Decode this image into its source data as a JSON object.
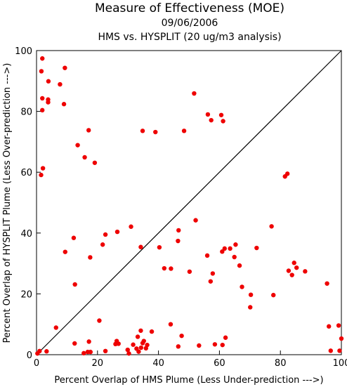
{
  "chart_data": {
    "type": "scatter",
    "title": "Measure of Effectiveness (MOE)",
    "subtitle_date": "09/06/2006",
    "subtitle": "HMS vs. HYSPLIT  (20 ug/m3 analysis)",
    "xlabel": "Percent Overlap of HMS Plume (Less Under-prediction --->)",
    "ylabel": "Percent Overlap of HYSPLIT Plume (Less Over-prediction --->)",
    "xlim": [
      0,
      100
    ],
    "ylim": [
      0,
      100
    ],
    "x_ticks": [
      0,
      20,
      40,
      60,
      80,
      100
    ],
    "y_ticks": [
      0,
      20,
      40,
      60,
      80,
      100
    ],
    "point_color": "#ee0000",
    "line_color": "#000000",
    "reference_line": {
      "from": [
        0,
        0
      ],
      "to": [
        100,
        100
      ]
    },
    "grid": false,
    "points": [
      [
        0.3,
        0.4
      ],
      [
        1.0,
        1.2
      ],
      [
        3.3,
        1.1
      ],
      [
        1.9,
        97.4
      ],
      [
        1.6,
        93.2
      ],
      [
        3.9,
        89.9
      ],
      [
        1.9,
        84.3
      ],
      [
        3.8,
        83.9
      ],
      [
        3.8,
        83.0
      ],
      [
        1.9,
        80.4
      ],
      [
        7.7,
        88.9
      ],
      [
        9.3,
        94.3
      ],
      [
        9.0,
        82.4
      ],
      [
        2.1,
        61.3
      ],
      [
        1.5,
        59.1
      ],
      [
        13.5,
        68.9
      ],
      [
        15.8,
        64.9
      ],
      [
        17.1,
        73.8
      ],
      [
        19.1,
        63.1
      ],
      [
        34.8,
        73.6
      ],
      [
        39.0,
        73.2
      ],
      [
        48.4,
        73.6
      ],
      [
        51.7,
        85.9
      ],
      [
        56.2,
        79.0
      ],
      [
        57.3,
        77.1
      ],
      [
        60.6,
        78.8
      ],
      [
        61.2,
        76.8
      ],
      [
        81.5,
        58.6
      ],
      [
        82.3,
        59.5
      ],
      [
        12.2,
        38.4
      ],
      [
        9.4,
        33.8
      ],
      [
        17.6,
        32.0
      ],
      [
        21.7,
        36.2
      ],
      [
        22.6,
        39.5
      ],
      [
        26.5,
        40.4
      ],
      [
        31.0,
        42.1
      ],
      [
        34.2,
        35.4
      ],
      [
        40.3,
        35.3
      ],
      [
        46.6,
        40.9
      ],
      [
        46.4,
        37.4
      ],
      [
        52.2,
        44.2
      ],
      [
        56.0,
        32.6
      ],
      [
        60.9,
        33.9
      ],
      [
        61.7,
        34.9
      ],
      [
        63.5,
        34.9
      ],
      [
        65.3,
        36.2
      ],
      [
        64.9,
        32.1
      ],
      [
        66.6,
        29.3
      ],
      [
        67.4,
        22.3
      ],
      [
        72.2,
        35.1
      ],
      [
        77.1,
        42.2
      ],
      [
        57.8,
        26.7
      ],
      [
        57.1,
        24.1
      ],
      [
        50.2,
        27.3
      ],
      [
        41.9,
        28.4
      ],
      [
        44.1,
        28.3
      ],
      [
        12.6,
        23.1
      ],
      [
        70.3,
        19.7
      ],
      [
        70.1,
        15.6
      ],
      [
        77.7,
        19.6
      ],
      [
        82.7,
        27.6
      ],
      [
        83.8,
        26.2
      ],
      [
        84.5,
        30.2
      ],
      [
        85.3,
        28.6
      ],
      [
        88.1,
        27.4
      ],
      [
        95.3,
        23.4
      ],
      [
        6.4,
        8.9
      ],
      [
        12.5,
        3.7
      ],
      [
        15.5,
        0.5
      ],
      [
        16.8,
        0.9
      ],
      [
        17.7,
        0.9
      ],
      [
        17.2,
        4.3
      ],
      [
        20.6,
        11.2
      ],
      [
        22.6,
        1.2
      ],
      [
        25.9,
        3.5
      ],
      [
        26.3,
        4.5
      ],
      [
        26.9,
        3.6
      ],
      [
        29.9,
        1.6
      ],
      [
        30.3,
        0.4
      ],
      [
        31.7,
        3.3
      ],
      [
        32.8,
        2.0
      ],
      [
        33.2,
        5.9
      ],
      [
        33.5,
        1.0
      ],
      [
        34.2,
        7.9
      ],
      [
        34.3,
        2.3
      ],
      [
        34.8,
        3.8
      ],
      [
        35.2,
        4.5
      ],
      [
        35.9,
        2.1
      ],
      [
        36.3,
        3.2
      ],
      [
        37.8,
        7.6
      ],
      [
        44.0,
        10.0
      ],
      [
        46.5,
        2.7
      ],
      [
        47.6,
        6.2
      ],
      [
        53.3,
        3.0
      ],
      [
        58.5,
        3.4
      ],
      [
        61.0,
        3.2
      ],
      [
        62.0,
        5.6
      ],
      [
        95.9,
        9.3
      ],
      [
        96.5,
        1.3
      ],
      [
        99.1,
        9.6
      ],
      [
        99.4,
        1.3
      ],
      [
        100.0,
        5.3
      ]
    ]
  }
}
